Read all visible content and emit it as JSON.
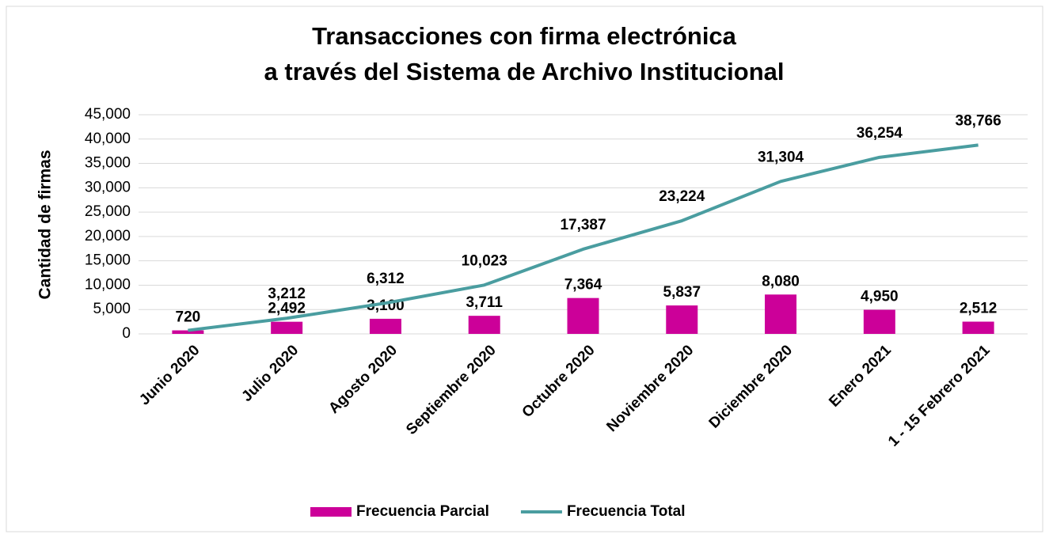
{
  "chart_data": {
    "type": "bar",
    "title": [
      "Transacciones con firma electrónica",
      "a través del Sistema de Archivo Institucional"
    ],
    "y_label": "Cantidad de firmas",
    "categories": [
      "Junio 2020",
      "Julio 2020",
      "Agosto 2020",
      "Septiembre 2020",
      "Octubre 2020",
      "Noviembre 2020",
      "Diciembre 2020",
      "Enero 2021",
      "1 - 15 Febrero 2021"
    ],
    "series": [
      {
        "name": "Frecuencia Parcial",
        "type": "bar",
        "color": "#cc0099",
        "values": [
          720,
          2492,
          3100,
          3711,
          7364,
          5837,
          8080,
          4950,
          2512
        ],
        "value_labels": [
          "720",
          "2,492",
          "3,100",
          "3,711",
          "7,364",
          "5,837",
          "8,080",
          "4,950",
          "2,512"
        ]
      },
      {
        "name": "Frecuencia Total",
        "type": "line",
        "color": "#4a9da0",
        "values": [
          720,
          3212,
          6312,
          10023,
          17387,
          23224,
          31304,
          36254,
          38766
        ],
        "value_labels": [
          "720",
          "3,212",
          "6,312",
          "10,023",
          "17,387",
          "23,224",
          "31,304",
          "36,254",
          "38,766"
        ]
      }
    ],
    "ylim": [
      0,
      45000
    ],
    "yticks": [
      0,
      {
        "value": 5000,
        "label": "5,000"
      },
      {
        "value": 10000,
        "label": "10,000"
      },
      {
        "value": 15000,
        "label": "15,000"
      },
      {
        "value": 20000,
        "label": "20,000"
      },
      {
        "value": 25000,
        "label": "25,000"
      },
      {
        "value": 30000,
        "label": "30,000"
      },
      {
        "value": 35000,
        "label": "35,000"
      },
      {
        "value": 40000,
        "label": "40,000"
      },
      {
        "value": 45000,
        "label": "45,000"
      }
    ],
    "grid": true,
    "legend": "bottom"
  }
}
